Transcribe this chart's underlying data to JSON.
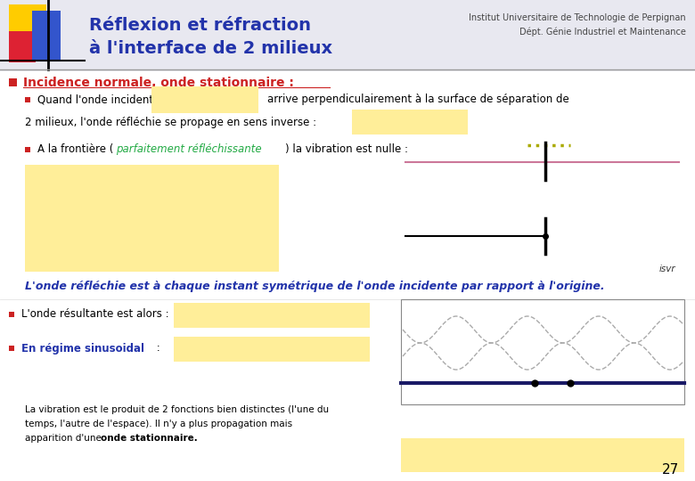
{
  "title_line1": "Réflexion et réfraction",
  "title_line2": "à l'interface de 2 milieux",
  "title_color": "#2233aa",
  "inst_line1": "Institut Universitaire de Technologie de Perpignan",
  "inst_line2": "Dépt. Génie Industriel et Maintenance",
  "inst_color": "#444444",
  "yellow": "#FFEE99",
  "section_title": "Incidence normale, onde stationnaire :",
  "section_color": "#cc2222",
  "bullet_color": "#cc2222",
  "body_color": "#000000",
  "italic_blue": "#2233aa",
  "green_text": "#22aa44",
  "italic_sentence": "L'onde réfléchie est à chaque instant symétrique de l'onde incidente par rapport à l'origine.",
  "page_number": "27",
  "background": "#ffffff",
  "logo_yellow": "#FFCC00",
  "logo_red": "#DD2233",
  "logo_blue": "#3355CC",
  "header_gray": "#e8e8f0",
  "divider_color": "#999999"
}
